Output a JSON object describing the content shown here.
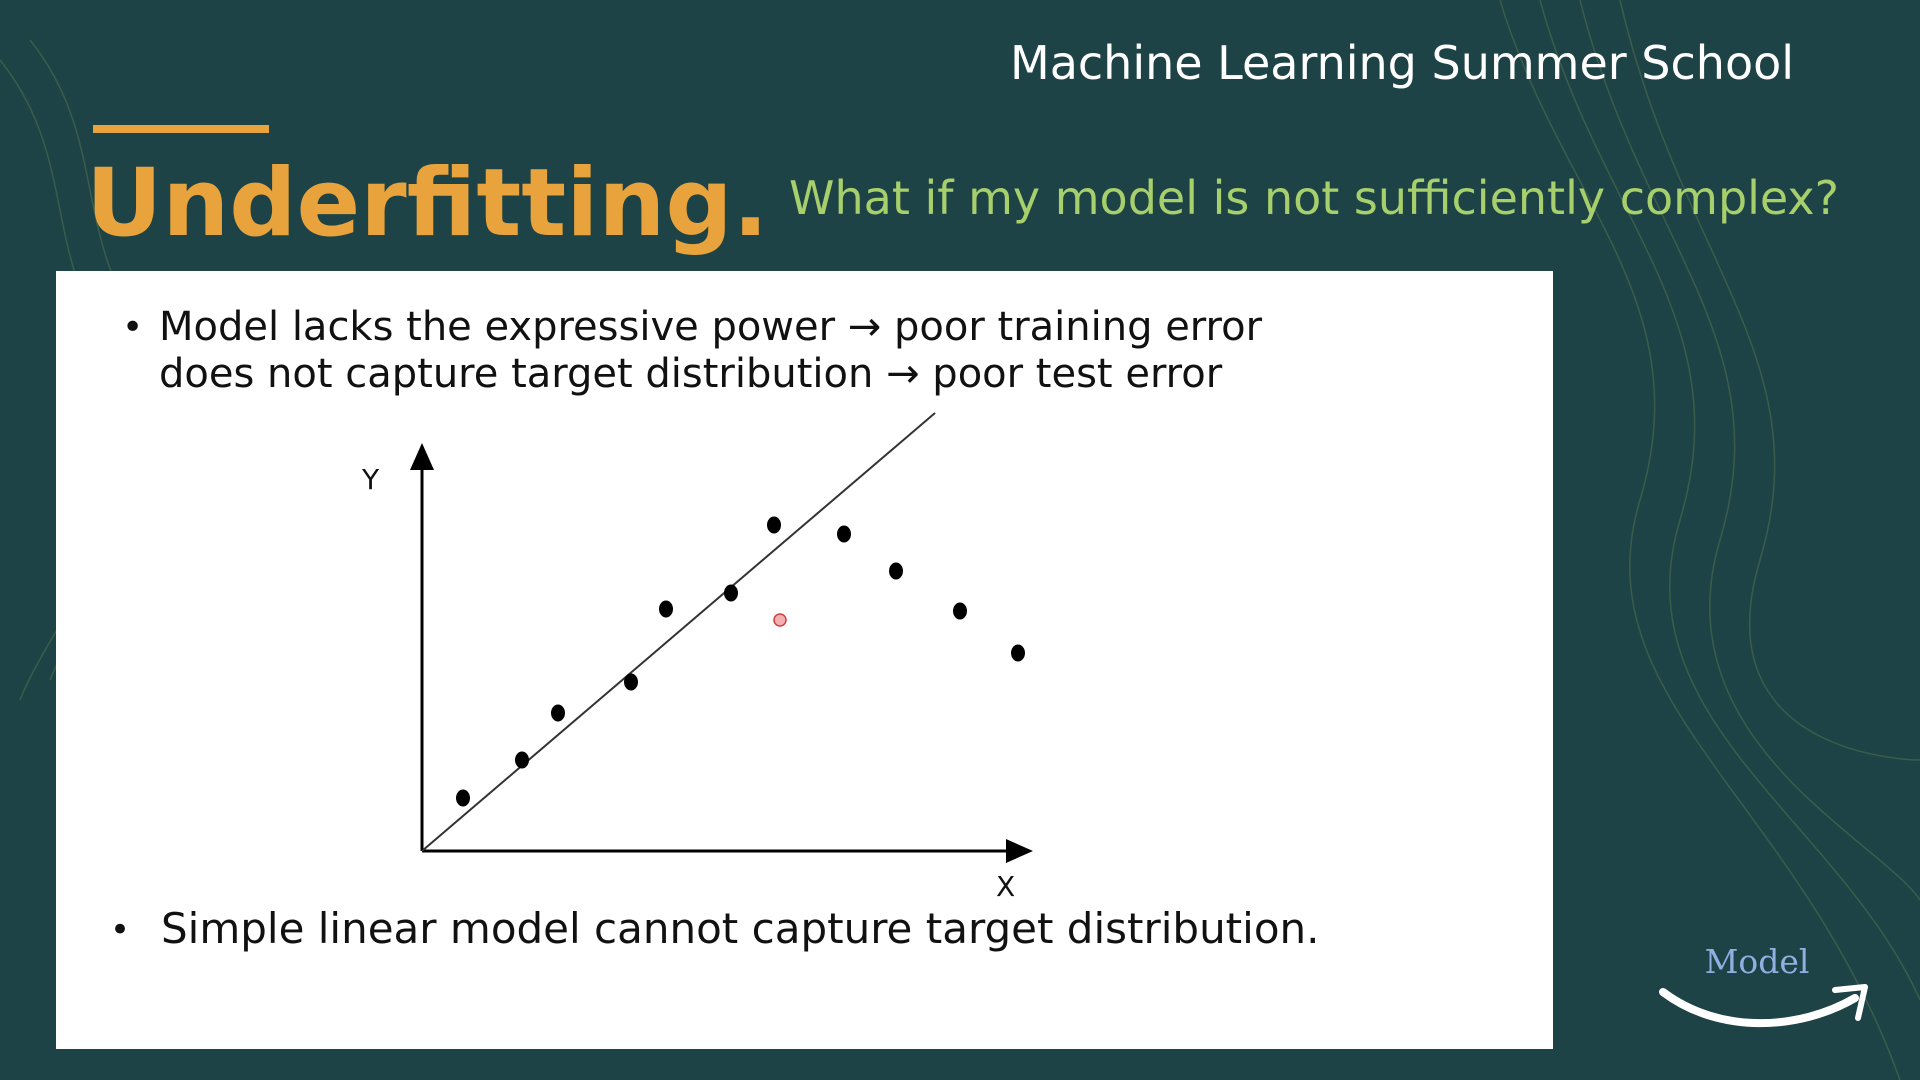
{
  "header": {
    "event": "Machine Learning Summer School",
    "title": "Underfitting.",
    "subtitle": "What if my model is not sufficiently complex?"
  },
  "bullets": [
    {
      "lines": [
        "Model lacks the expressive power → poor training error",
        "does not capture target distribution → poor test error"
      ]
    },
    {
      "lines": [
        "Simple linear model cannot capture target distribution."
      ]
    }
  ],
  "figure": {
    "y_label": "Y",
    "x_label": "X"
  },
  "logo": {
    "text": "Model"
  }
}
